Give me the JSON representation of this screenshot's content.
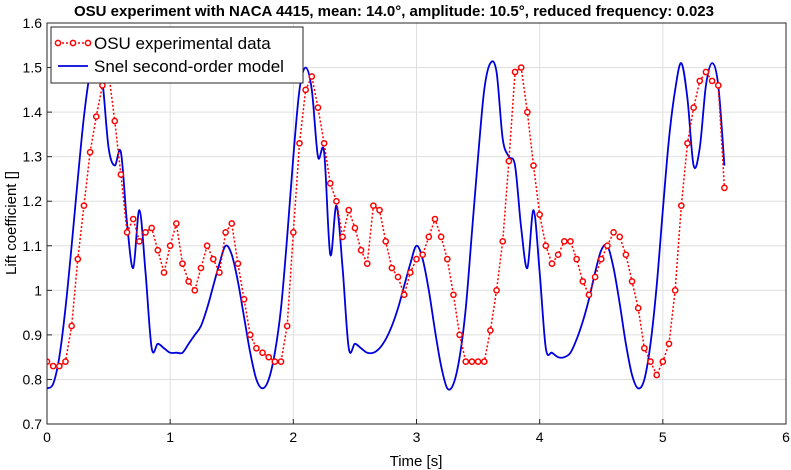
{
  "chart_data": {
    "type": "line",
    "title": "OSU experiment with NACA 4415, mean: 14.0°, amplitude: 10.5°, reduced frequency: 0.023",
    "xlabel": "Time [s]",
    "ylabel": "Lift coefficient []",
    "xlim": [
      0,
      6
    ],
    "ylim": [
      0.7,
      1.6
    ],
    "grid": true,
    "legend_position": "top-left",
    "x_ticks": [
      0,
      1,
      2,
      3,
      4,
      5,
      6
    ],
    "y_ticks": [
      0.7,
      0.8,
      0.9,
      1.0,
      1.1,
      1.2,
      1.3,
      1.4,
      1.5,
      1.6
    ],
    "x_tick_labels": [
      "0",
      "1",
      "2",
      "3",
      "4",
      "5",
      "6"
    ],
    "y_tick_labels": [
      "0.7",
      "0.8",
      "0.9",
      "1",
      "1.1",
      "1.2",
      "1.3",
      "1.4",
      "1.5",
      "1.6"
    ],
    "series": [
      {
        "name": "OSU experimental data",
        "color": "#ff0000",
        "style": "dotted-with-circles",
        "x": [
          0.0,
          0.05,
          0.1,
          0.15,
          0.2,
          0.25,
          0.3,
          0.35,
          0.4,
          0.45,
          0.5,
          0.55,
          0.6,
          0.65,
          0.7,
          0.75,
          0.8,
          0.85,
          0.9,
          0.95,
          1.0,
          1.05,
          1.1,
          1.15,
          1.2,
          1.25,
          1.3,
          1.35,
          1.4,
          1.45,
          1.5,
          1.55,
          1.6,
          1.65,
          1.7,
          1.75,
          1.8,
          1.85,
          1.9,
          1.95,
          2.0,
          2.05,
          2.1,
          2.15,
          2.2,
          2.25,
          2.3,
          2.35,
          2.4,
          2.45,
          2.5,
          2.55,
          2.6,
          2.65,
          2.7,
          2.75,
          2.8,
          2.85,
          2.9,
          2.95,
          3.0,
          3.05,
          3.1,
          3.15,
          3.2,
          3.25,
          3.3,
          3.35,
          3.4,
          3.45,
          3.5,
          3.55,
          3.6,
          3.65,
          3.7,
          3.75,
          3.8,
          3.85,
          3.9,
          3.95,
          4.0,
          4.05,
          4.1,
          4.15,
          4.2,
          4.25,
          4.3,
          4.35,
          4.4,
          4.45,
          4.5,
          4.55,
          4.6,
          4.65,
          4.7,
          4.75,
          4.8,
          4.85,
          4.9,
          4.95,
          5.0,
          5.05,
          5.1,
          5.15,
          5.2,
          5.25,
          5.3,
          5.35,
          5.4,
          5.45,
          5.5
        ],
        "y": [
          0.84,
          0.83,
          0.83,
          0.84,
          0.92,
          1.07,
          1.19,
          1.31,
          1.39,
          1.46,
          1.49,
          1.38,
          1.26,
          1.13,
          1.16,
          1.11,
          1.13,
          1.14,
          1.09,
          1.04,
          1.1,
          1.15,
          1.06,
          1.02,
          1.0,
          1.05,
          1.1,
          1.07,
          1.04,
          1.13,
          1.15,
          1.06,
          0.98,
          0.9,
          0.87,
          0.86,
          0.85,
          0.84,
          0.84,
          0.92,
          1.13,
          1.33,
          1.45,
          1.48,
          1.41,
          1.33,
          1.24,
          1.2,
          1.12,
          1.18,
          1.14,
          1.09,
          1.06,
          1.19,
          1.18,
          1.11,
          1.05,
          1.03,
          0.99,
          1.04,
          1.07,
          1.08,
          1.12,
          1.16,
          1.12,
          1.07,
          0.99,
          0.9,
          0.84,
          0.84,
          0.84,
          0.84,
          0.91,
          1.0,
          1.11,
          1.29,
          1.49,
          1.5,
          1.4,
          1.28,
          1.17,
          1.1,
          1.06,
          1.08,
          1.11,
          1.11,
          1.07,
          1.02,
          0.99,
          1.03,
          1.07,
          1.1,
          1.13,
          1.12,
          1.08,
          1.02,
          0.96,
          0.87,
          0.84,
          0.81,
          0.84,
          0.88,
          1.0,
          1.19,
          1.33,
          1.41,
          1.47,
          1.49,
          1.47,
          1.46,
          1.23
        ]
      },
      {
        "name": "Snel second-order model",
        "color": "#0000dd",
        "style": "solid",
        "x": [
          0.0,
          0.05,
          0.1,
          0.15,
          0.2,
          0.25,
          0.3,
          0.35,
          0.4,
          0.45,
          0.5,
          0.55,
          0.6,
          0.65,
          0.7,
          0.75,
          0.8,
          0.85,
          0.9,
          0.95,
          1.0,
          1.05,
          1.1,
          1.15,
          1.2,
          1.25,
          1.3,
          1.35,
          1.4,
          1.45,
          1.5,
          1.55,
          1.6,
          1.65,
          1.7,
          1.75,
          1.8,
          1.85,
          1.9,
          1.95,
          2.0,
          2.05,
          2.1,
          2.15,
          2.2,
          2.25,
          2.3,
          2.35,
          2.4,
          2.45,
          2.5,
          2.55,
          2.6,
          2.65,
          2.7,
          2.75,
          2.8,
          2.85,
          2.9,
          2.95,
          3.0,
          3.05,
          3.1,
          3.15,
          3.2,
          3.25,
          3.3,
          3.35,
          3.4,
          3.45,
          3.5,
          3.55,
          3.6,
          3.65,
          3.7,
          3.75,
          3.8,
          3.85,
          3.9,
          3.95,
          4.0,
          4.05,
          4.1,
          4.15,
          4.2,
          4.25,
          4.3,
          4.35,
          4.4,
          4.45,
          4.5,
          4.55,
          4.6,
          4.65,
          4.7,
          4.75,
          4.8,
          4.85,
          4.9,
          4.95,
          5.0,
          5.05,
          5.1,
          5.15,
          5.2,
          5.25,
          5.3,
          5.35,
          5.4,
          5.45,
          5.5
        ],
        "y": [
          0.78,
          0.79,
          0.85,
          0.96,
          1.1,
          1.25,
          1.39,
          1.49,
          1.54,
          1.47,
          1.32,
          1.28,
          1.31,
          1.15,
          1.05,
          1.18,
          1.04,
          0.87,
          0.88,
          0.87,
          0.86,
          0.86,
          0.86,
          0.88,
          0.9,
          0.92,
          0.96,
          1.01,
          1.06,
          1.1,
          1.08,
          1.02,
          0.94,
          0.86,
          0.8,
          0.78,
          0.8,
          0.86,
          0.96,
          1.12,
          1.3,
          1.45,
          1.5,
          1.45,
          1.3,
          1.31,
          1.08,
          1.19,
          1.05,
          0.87,
          0.88,
          0.87,
          0.86,
          0.86,
          0.87,
          0.89,
          0.92,
          0.96,
          1.01,
          1.06,
          1.1,
          1.07,
          1.0,
          0.91,
          0.83,
          0.78,
          0.79,
          0.85,
          0.96,
          1.13,
          1.3,
          1.45,
          1.51,
          1.49,
          1.34,
          1.3,
          1.28,
          1.14,
          1.05,
          1.18,
          1.04,
          0.87,
          0.86,
          0.85,
          0.85,
          0.86,
          0.89,
          0.93,
          0.98,
          1.04,
          1.09,
          1.1,
          1.05,
          0.97,
          0.88,
          0.81,
          0.78,
          0.8,
          0.88,
          1.01,
          1.18,
          1.34,
          1.45,
          1.51,
          1.43,
          1.28,
          1.32,
          1.46,
          1.51,
          1.46,
          1.28
        ]
      }
    ]
  }
}
